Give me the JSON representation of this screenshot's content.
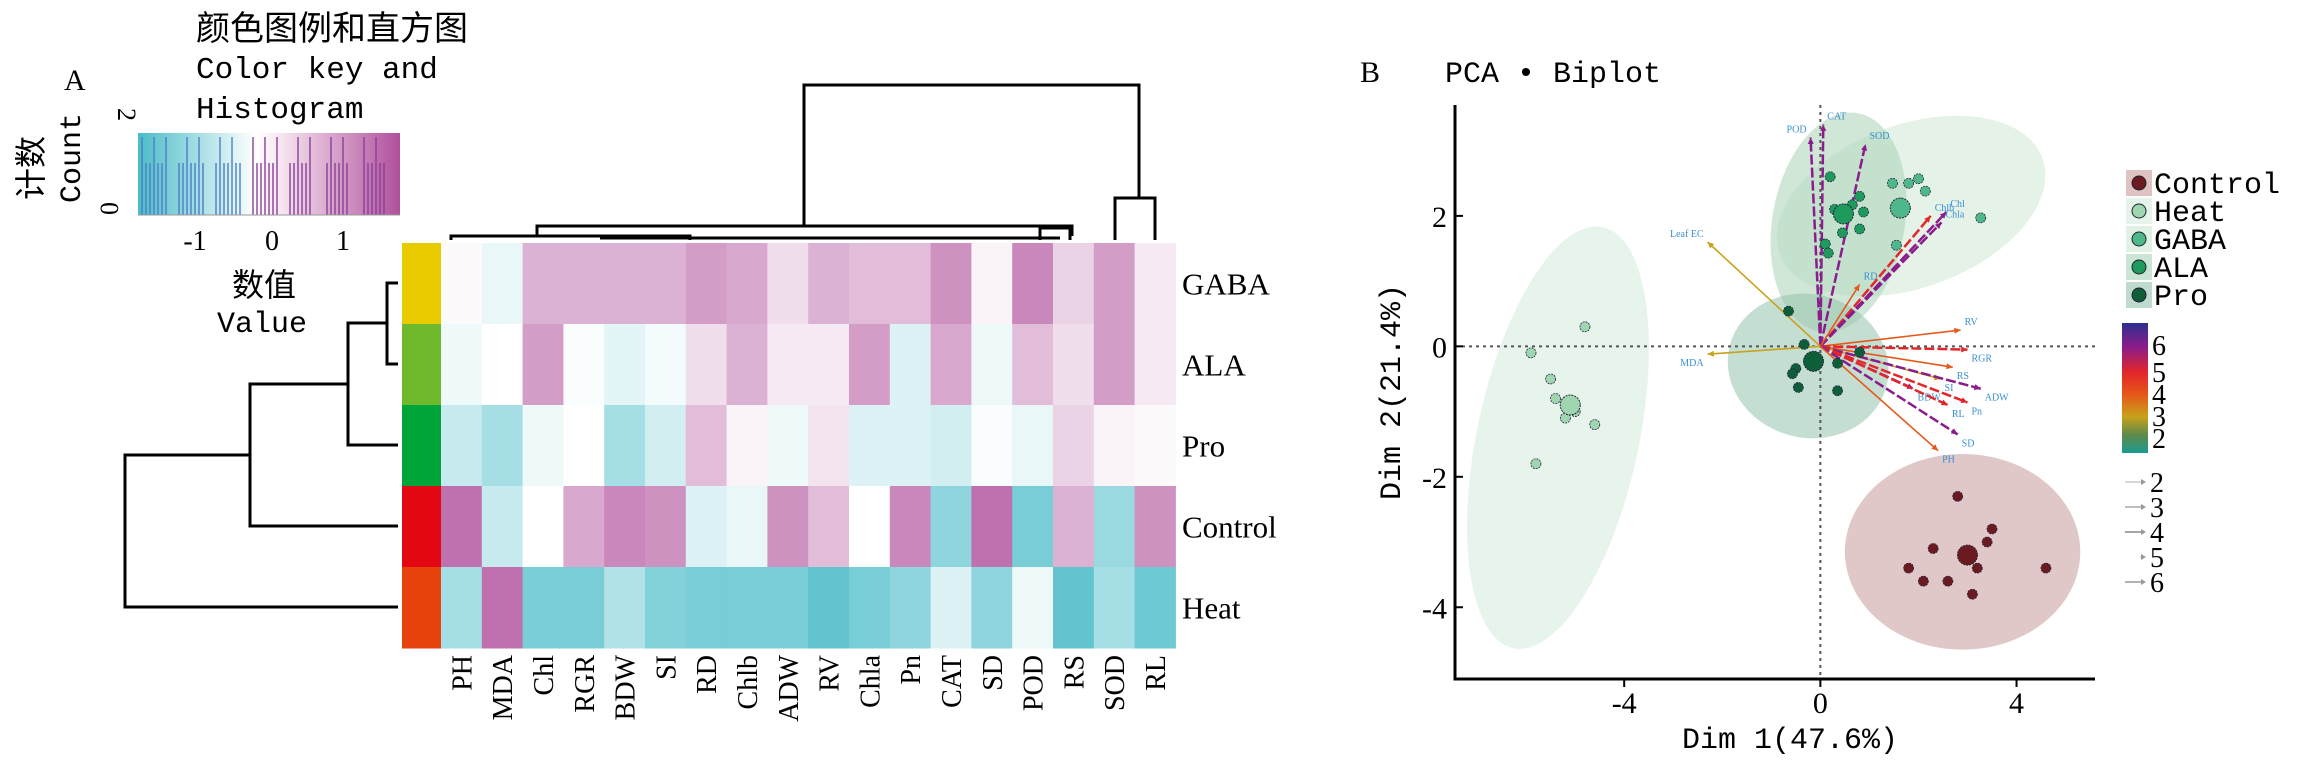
{
  "panel_a": {
    "panel_label": "A",
    "color_key": {
      "title_cn": "颜色图例和直方图",
      "title_en_1": "Color key and",
      "title_en_2": "Histogram",
      "ylabel_cn": "计数",
      "ylabel_en": "Count",
      "yticks": [
        "0",
        "2"
      ],
      "xticks": [
        "-1",
        "0",
        "1"
      ],
      "xlabel_cn": "数值",
      "xlabel_en": "Value",
      "low_color": "#4bbcc8",
      "mid_color": "#ffffff",
      "high_color": "#b0509c"
    }
  },
  "chart_data": [
    {
      "type": "heatmap",
      "rows": [
        "GABA",
        "ALA",
        "Pro",
        "Control",
        "Heat"
      ],
      "row_colors": [
        "#e8cc00",
        "#70b82c",
        "#00a53a",
        "#e30613",
        "#e8420c"
      ],
      "columns": [
        "PH",
        "MDA",
        "Chl",
        "RGR",
        "BDW",
        "SI",
        "RD",
        "Chlb",
        "ADW",
        "RV",
        "Chla",
        "Pn",
        "CAT",
        "SD",
        "POD",
        "RS",
        "SOD",
        "RL"
      ],
      "value_range": [
        -1.6,
        1.6
      ],
      "values": [
        [
          0.05,
          -0.2,
          0.7,
          0.7,
          0.7,
          0.7,
          0.9,
          0.8,
          0.3,
          0.7,
          0.6,
          0.6,
          1.0,
          0.1,
          1.1,
          0.4,
          0.9,
          0.2
        ],
        [
          -0.15,
          0.0,
          0.9,
          -0.05,
          -0.25,
          -0.1,
          0.3,
          0.7,
          0.2,
          0.2,
          0.9,
          -0.3,
          0.8,
          -0.15,
          0.6,
          0.3,
          0.9,
          0.2
        ],
        [
          -0.5,
          -0.8,
          -0.15,
          0.0,
          -0.8,
          -0.4,
          0.6,
          0.1,
          -0.15,
          0.25,
          -0.3,
          -0.3,
          -0.4,
          -0.05,
          -0.2,
          0.4,
          0.1,
          0.05
        ],
        [
          1.3,
          -0.5,
          0.0,
          0.8,
          1.1,
          1.0,
          -0.3,
          -0.2,
          1.0,
          0.6,
          0.0,
          1.1,
          -1.0,
          1.3,
          -1.2,
          0.7,
          -0.9,
          1.0
        ],
        [
          -0.8,
          1.3,
          -1.2,
          -1.2,
          -0.7,
          -1.1,
          -1.2,
          -1.2,
          -1.2,
          -1.4,
          -1.2,
          -1.0,
          -0.3,
          -1.0,
          -0.15,
          -1.4,
          -0.8,
          -1.3
        ]
      ],
      "row_dendrogram": true,
      "column_dendrogram": true
    },
    {
      "type": "scatter",
      "panel_label": "B",
      "title": "PCA • Biplot",
      "xlabel": "Dim 1(47.6%)",
      "ylabel": "Dim 2(21.4%)",
      "xlim": [
        -7.45,
        5.6
      ],
      "ylim": [
        -5.1,
        3.7
      ],
      "xticks": [
        "-4",
        "0",
        "4"
      ],
      "yticks": [
        "2",
        "0",
        "-2",
        "-4"
      ],
      "groups": [
        {
          "name": "Control",
          "color": "#6b1a1f",
          "ellipse_color": "#c99a9a",
          "ellipse": {
            "cx": 2.9,
            "cy": -3.15,
            "rx": 2.4,
            "ry": 1.5,
            "angle": 0
          },
          "centroid": [
            3.0,
            -3.2
          ],
          "points": [
            [
              2.8,
              -2.3
            ],
            [
              3.5,
              -2.8
            ],
            [
              1.8,
              -3.4
            ],
            [
              2.6,
              -3.6
            ],
            [
              3.2,
              -3.4
            ],
            [
              4.6,
              -3.4
            ],
            [
              3.4,
              -3.0
            ],
            [
              2.3,
              -3.1
            ],
            [
              3.1,
              -3.8
            ],
            [
              2.1,
              -3.6
            ]
          ]
        },
        {
          "name": "Heat",
          "color": "#9fd6b0",
          "ellipse_color": "#d4ebdc",
          "ellipse": {
            "cx": -5.35,
            "cy": -1.4,
            "rx": 1.65,
            "ry": 3.3,
            "angle": 12
          },
          "centroid": [
            -5.1,
            -0.9
          ],
          "points": [
            [
              -4.8,
              0.3
            ],
            [
              -5.5,
              -0.5
            ],
            [
              -5.0,
              -1.0
            ],
            [
              -4.6,
              -1.2
            ],
            [
              -5.8,
              -1.8
            ],
            [
              -5.4,
              -0.8
            ],
            [
              -5.2,
              -1.1
            ],
            [
              -5.9,
              -0.1
            ]
          ]
        },
        {
          "name": "GABA",
          "color": "#4fb88a",
          "ellipse_color": "#cfe7d6",
          "ellipse": {
            "cx": 1.85,
            "cy": 2.15,
            "rx": 2.85,
            "ry": 1.25,
            "angle": -20
          },
          "centroid": [
            1.63,
            2.12
          ],
          "points": [
            [
              1.47,
              2.5
            ],
            [
              1.8,
              2.5
            ],
            [
              2.0,
              2.57
            ],
            [
              2.14,
              2.38
            ],
            [
              3.27,
              1.97
            ],
            [
              1.55,
              1.55
            ]
          ]
        },
        {
          "name": "ALA",
          "color": "#1d9a5c",
          "ellipse_color": "#a9d3b8",
          "ellipse": {
            "cx": 0.37,
            "cy": 1.9,
            "rx": 1.35,
            "ry": 1.7,
            "angle": 10
          },
          "centroid": [
            0.47,
            2.03
          ],
          "points": [
            [
              0.2,
              2.6
            ],
            [
              0.29,
              2.1
            ],
            [
              0.65,
              2.17
            ],
            [
              0.8,
              2.3
            ],
            [
              0.88,
              2.06
            ],
            [
              0.45,
              1.74
            ],
            [
              0.8,
              1.8
            ],
            [
              0.1,
              1.57
            ],
            [
              0.16,
              1.43
            ]
          ]
        },
        {
          "name": "Pro",
          "color": "#0f5e3a",
          "ellipse_color": "#95c3ad",
          "ellipse": {
            "cx": -0.25,
            "cy": -0.3,
            "rx": 1.65,
            "ry": 1.1,
            "angle": 15
          },
          "centroid": [
            -0.14,
            -0.23
          ],
          "points": [
            [
              -0.65,
              0.54
            ],
            [
              -0.33,
              0.03
            ],
            [
              -0.5,
              -0.34
            ],
            [
              -0.57,
              -0.42
            ],
            [
              -0.45,
              -0.63
            ],
            [
              0.35,
              -0.26
            ],
            [
              0.35,
              -0.68
            ],
            [
              0.8,
              -0.09
            ]
          ]
        }
      ],
      "variables": [
        {
          "name": "POD",
          "x": -0.2,
          "y": 3.2,
          "contrib": 6
        },
        {
          "name": "CAT",
          "x": 0.06,
          "y": 3.4,
          "contrib": 6
        },
        {
          "name": "SOD",
          "x": 0.92,
          "y": 3.1,
          "contrib": 6
        },
        {
          "name": "Chlb",
          "x": 2.25,
          "y": 2.0,
          "contrib": 5
        },
        {
          "name": "Chl",
          "x": 2.57,
          "y": 2.06,
          "contrib": 6
        },
        {
          "name": "Chla",
          "x": 2.47,
          "y": 1.9,
          "contrib": 6
        },
        {
          "name": "Leaf EC",
          "x": -2.3,
          "y": 1.6,
          "contrib": 3
        },
        {
          "name": "RD",
          "x": 0.8,
          "y": 0.95,
          "contrib": 4
        },
        {
          "name": "RV",
          "x": 2.86,
          "y": 0.25,
          "contrib": 4
        },
        {
          "name": "RGR",
          "x": 3.0,
          "y": -0.05,
          "contrib": 5
        },
        {
          "name": "RS",
          "x": 2.7,
          "y": -0.32,
          "contrib": 4
        },
        {
          "name": "SI",
          "x": 2.45,
          "y": -0.5,
          "contrib": 3
        },
        {
          "name": "BDW",
          "x": 1.9,
          "y": -0.65,
          "contrib": 6
        },
        {
          "name": "ADW",
          "x": 3.27,
          "y": -0.65,
          "contrib": 6
        },
        {
          "name": "Pn",
          "x": 3.0,
          "y": -0.86,
          "contrib": 5
        },
        {
          "name": "RL",
          "x": 2.6,
          "y": -0.9,
          "contrib": 5
        },
        {
          "name": "SD",
          "x": 2.8,
          "y": -1.35,
          "contrib": 6
        },
        {
          "name": "PH",
          "x": 2.4,
          "y": -1.6,
          "contrib": 4
        },
        {
          "name": "MDA",
          "x": -2.3,
          "y": -0.12,
          "contrib": 3
        }
      ],
      "contrib_legend": {
        "ticks": [
          "6",
          "5",
          "4",
          "3",
          "2"
        ],
        "gradient": [
          "#2b2f8f",
          "#8a1c8c",
          "#e3262a",
          "#e6581a",
          "#c9a11a",
          "#5f8a4a",
          "#1a9a92"
        ]
      },
      "arrow_legend": [
        "2",
        "3",
        "4",
        "5",
        "6"
      ],
      "reference_lines": "dotted at x=0 and y=0"
    }
  ]
}
